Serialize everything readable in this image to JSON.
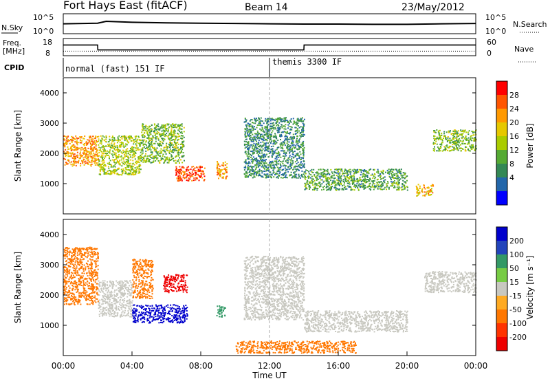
{
  "header": {
    "station": "Fort Hays East (fitACF)",
    "beam": "Beam 14",
    "date": "23/May/2012"
  },
  "noise_panel": {
    "left_label": "N.Sky",
    "right_label": "N.Search",
    "left_ticks": [
      "10^5",
      "10^0"
    ],
    "right_ticks": [
      "10^5",
      "10^0"
    ]
  },
  "freq_panel": {
    "left_label_top": "Freq.",
    "left_label_bottom": "[MHz]",
    "right_label": "Nave",
    "left_ticks": [
      "18",
      "8"
    ],
    "right_ticks": [
      "60",
      "0"
    ]
  },
  "cpid_panel": {
    "label": "CPID",
    "segments": [
      {
        "label": "normal (fast) 151 IF",
        "start_hour": 0,
        "end_hour": 12
      },
      {
        "label": "themis 3300 IF",
        "start_hour": 12,
        "end_hour": 24
      }
    ]
  },
  "power_panel": {
    "ylabel": "Slant Range [km]",
    "yticks": [
      "4000",
      "3000",
      "2000",
      "1000"
    ],
    "colorbar_label": "Power [dB]",
    "colorbar_ticks": [
      "28",
      "24",
      "20",
      "16",
      "12",
      "8",
      "4"
    ],
    "colors": [
      "#ff0000",
      "#ff5500",
      "#ff9900",
      "#e6c800",
      "#aacc00",
      "#55aa33",
      "#338855",
      "#2266aa",
      "#0000ff"
    ]
  },
  "velocity_panel": {
    "ylabel": "Slant Range [km]",
    "yticks": [
      "4000",
      "3000",
      "2000",
      "1000"
    ],
    "colorbar_label": "Velocity [m s⁻¹]",
    "colorbar_ticks": [
      "200",
      "100",
      "50",
      "15",
      "-15",
      "-50",
      "-100",
      "-200"
    ],
    "colors": [
      "#0000cc",
      "#2244bb",
      "#339966",
      "#77cc44",
      "#c8c8c0",
      "#ffaa22",
      "#ff7700",
      "#ff3300",
      "#ee0000"
    ]
  },
  "xaxis": {
    "ticks": [
      "00:00",
      "04:00",
      "08:00",
      "12:00",
      "16:00",
      "20:00",
      "00:00"
    ],
    "label": "Time UT"
  },
  "chart_data": [
    {
      "type": "line",
      "title": "N.Sky / N.Search",
      "x_hours": [
        0,
        2,
        2.5,
        4,
        6,
        8,
        10,
        12,
        14,
        16,
        18,
        20,
        22,
        24
      ],
      "series": [
        {
          "name": "N.Sky",
          "values_log10": [
            2.6,
            2.8,
            3.4,
            3.1,
            2.9,
            2.8,
            2.7,
            2.6,
            2.5,
            2.5,
            2.4,
            2.4,
            2.6,
            2.7
          ]
        }
      ],
      "ylim_log10": [
        0,
        5
      ]
    },
    {
      "type": "line",
      "title": "Freq. / Nave",
      "x_hours": [
        0,
        2,
        2.01,
        14,
        14.01,
        24
      ],
      "series": [
        {
          "name": "Freq.",
          "values": [
            15,
            15,
            11,
            11,
            15,
            15
          ]
        }
      ],
      "nave_level": 10,
      "ylim": [
        8,
        18
      ]
    },
    {
      "type": "heatmap",
      "title": "Power [dB]",
      "xlim_hours": [
        0,
        24
      ],
      "ylim_km": [
        0,
        4500
      ],
      "regions": [
        {
          "t0": 0,
          "t1": 2,
          "r0": 1600,
          "r1": 2600,
          "db": 22
        },
        {
          "t0": 2,
          "t1": 4.5,
          "r0": 1300,
          "r1": 2600,
          "db": 16
        },
        {
          "t0": 4.5,
          "t1": 7,
          "r0": 1700,
          "r1": 3000,
          "db": 14
        },
        {
          "t0": 6.5,
          "t1": 8.2,
          "r0": 1100,
          "r1": 1600,
          "db": 26
        },
        {
          "t0": 8.9,
          "t1": 9.5,
          "r0": 1150,
          "r1": 1750,
          "db": 22
        },
        {
          "t0": 10.5,
          "t1": 14,
          "r0": 1200,
          "r1": 3200,
          "db": 10
        },
        {
          "t0": 14,
          "t1": 20,
          "r0": 800,
          "r1": 1500,
          "db": 12
        },
        {
          "t0": 20.5,
          "t1": 21.5,
          "r0": 600,
          "r1": 1000,
          "db": 20
        },
        {
          "t0": 21.5,
          "t1": 24,
          "r0": 2100,
          "r1": 2800,
          "db": 14
        }
      ]
    },
    {
      "type": "heatmap",
      "title": "Velocity [m s⁻¹]",
      "xlim_hours": [
        0,
        24
      ],
      "ylim_km": [
        0,
        4500
      ],
      "regions": [
        {
          "t0": 0,
          "t1": 2,
          "r0": 1700,
          "r1": 3600,
          "vel": -50
        },
        {
          "t0": 2,
          "t1": 4,
          "r0": 1300,
          "r1": 2500,
          "vel": 0
        },
        {
          "t0": 4,
          "t1": 5.2,
          "r0": 1900,
          "r1": 3200,
          "vel": -50
        },
        {
          "t0": 5.8,
          "t1": 7.2,
          "r0": 2100,
          "r1": 2700,
          "vel": -200
        },
        {
          "t0": 4,
          "t1": 7.2,
          "r0": 1100,
          "r1": 1700,
          "vel": 200
        },
        {
          "t0": 8.9,
          "t1": 9.4,
          "r0": 1300,
          "r1": 1700,
          "vel": 50
        },
        {
          "t0": 10.5,
          "t1": 14,
          "r0": 1200,
          "r1": 3300,
          "vel": 0
        },
        {
          "t0": 14,
          "t1": 20,
          "r0": 800,
          "r1": 1500,
          "vel": 0
        },
        {
          "t0": 10,
          "t1": 17,
          "r0": 100,
          "r1": 500,
          "vel": -50
        },
        {
          "t0": 21,
          "t1": 24,
          "r0": 2100,
          "r1": 2800,
          "vel": 0
        }
      ]
    }
  ]
}
